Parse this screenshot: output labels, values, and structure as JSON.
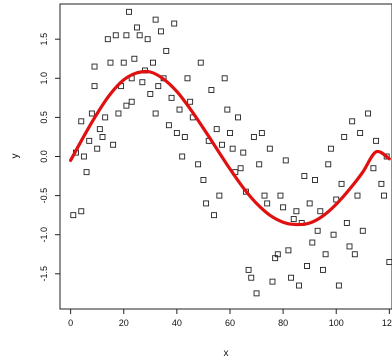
{
  "chart_data": {
    "type": "scatter",
    "title": "",
    "xlabel": "x",
    "ylabel": "y",
    "xlim": [
      -4,
      121
    ],
    "ylim": [
      -1.95,
      1.95
    ],
    "xticks": [
      0,
      20,
      40,
      60,
      80,
      100,
      120
    ],
    "xtick_labels": [
      "0",
      "20",
      "40",
      "60",
      "80",
      "100",
      "120"
    ],
    "yticks": [
      -1.5,
      -1.0,
      -0.5,
      0.0,
      0.5,
      1.0,
      1.5
    ],
    "ytick_labels": [
      "-1.5",
      "-1.0",
      "-0.5",
      "0.0",
      "0.5",
      "1.0",
      "1.5"
    ],
    "grid": false,
    "legend": "none",
    "colors": {
      "points": "#222222",
      "fit": "#e01010",
      "axes": "#222222"
    },
    "series": [
      {
        "kind": "points",
        "x": [
          1,
          2,
          4,
          4,
          5,
          6,
          7,
          8,
          9,
          9,
          10,
          11,
          12,
          13,
          14,
          15,
          16,
          17,
          18,
          19,
          20,
          21,
          21,
          22,
          23,
          23,
          24,
          25,
          26,
          27,
          28,
          29,
          30,
          31,
          32,
          32,
          33,
          34,
          35,
          36,
          37,
          38,
          39,
          40,
          41,
          42,
          43,
          44,
          45,
          46,
          48,
          49,
          50,
          51,
          52,
          53,
          54,
          55,
          56,
          57,
          58,
          59,
          60,
          61,
          62,
          63,
          64,
          65,
          66,
          67,
          68,
          69,
          70,
          71,
          72,
          73,
          74,
          75,
          76,
          77,
          78,
          79,
          80,
          81,
          82,
          83,
          84,
          85,
          86,
          87,
          88,
          89,
          90,
          91,
          92,
          93,
          94,
          95,
          96,
          97,
          98,
          99,
          100,
          101,
          102,
          103,
          104,
          105,
          106,
          107,
          108,
          109,
          110,
          112,
          114,
          115,
          117,
          118,
          119,
          120
        ],
        "y": [
          -0.75,
          0.05,
          0.45,
          -0.7,
          0.0,
          -0.2,
          0.2,
          0.55,
          0.9,
          1.15,
          0.1,
          0.35,
          0.25,
          0.5,
          1.5,
          1.2,
          0.15,
          1.55,
          0.55,
          0.9,
          1.2,
          0.65,
          1.55,
          1.85,
          1.0,
          0.7,
          1.25,
          1.65,
          1.55,
          0.95,
          1.1,
          1.5,
          0.8,
          1.2,
          1.75,
          0.55,
          0.9,
          1.6,
          1.0,
          1.35,
          0.4,
          0.75,
          1.7,
          0.3,
          0.6,
          0.0,
          0.25,
          1.0,
          0.7,
          0.5,
          -0.1,
          1.2,
          -0.3,
          -0.6,
          0.2,
          0.85,
          -0.75,
          0.35,
          -0.5,
          0.15,
          1.0,
          0.6,
          0.3,
          0.1,
          -0.2,
          0.5,
          -0.15,
          0.05,
          -0.45,
          -1.45,
          -1.55,
          0.25,
          -1.75,
          -0.1,
          0.3,
          -0.5,
          -0.6,
          0.1,
          -1.6,
          -1.3,
          -1.25,
          -0.5,
          -0.65,
          -0.05,
          -1.2,
          -1.55,
          -0.8,
          -0.7,
          -1.65,
          -0.85,
          -0.25,
          -1.4,
          -0.6,
          -1.1,
          -0.3,
          -0.95,
          -0.7,
          -1.45,
          -1.25,
          -0.1,
          0.1,
          -1.0,
          -0.55,
          -1.65,
          -0.35,
          0.25,
          -0.85,
          -1.15,
          0.45,
          -1.25,
          -0.5,
          0.3,
          -0.95,
          0.55,
          -0.15,
          0.2,
          -0.35,
          -0.5,
          0.0,
          -1.35
        ]
      },
      {
        "kind": "line",
        "name": "",
        "x": [
          0,
          5,
          10,
          15,
          20,
          25,
          30,
          35,
          40,
          45,
          50,
          55,
          60,
          65,
          70,
          75,
          80,
          85,
          90,
          95,
          100,
          105,
          110,
          115,
          120
        ],
        "y": [
          -0.05,
          0.26,
          0.55,
          0.8,
          0.98,
          1.07,
          1.08,
          0.99,
          0.83,
          0.61,
          0.36,
          0.1,
          -0.16,
          -0.4,
          -0.6,
          -0.75,
          -0.84,
          -0.87,
          -0.85,
          -0.76,
          -0.61,
          -0.42,
          -0.2,
          0.06,
          -0.03
        ]
      }
    ]
  }
}
